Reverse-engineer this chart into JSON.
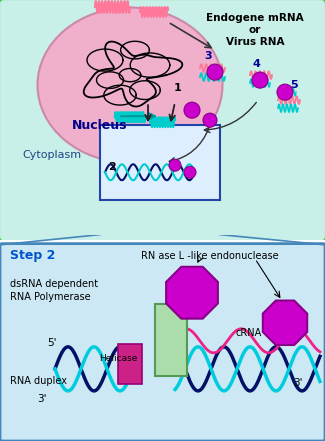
{
  "cell_bg": "#c8f0e8",
  "cell_border": "#44cc44",
  "nucleus_color": "#f0b0cc",
  "step2_bg": "#cce8f4",
  "step2_border": "#4488bb",
  "magenta": "#cc00cc",
  "cyan_color": "#00ccdd",
  "dark_navy": "#001166",
  "green_rect": "#aaddaa",
  "pink_rect": "#cc2288",
  "labels": {
    "nucleus": "Nucleus",
    "cytoplasm": "Cytoplasm",
    "endogene": "Endogene mRNA\nor\nVirus RNA",
    "step2": "Step 2",
    "dsrna_dep": "dsRNA dependent\nRNA Polymerase",
    "rnase": "RN ase L -like endonuclease",
    "crna": "cRNA",
    "helicase": "Helicase",
    "rna_duplex": "RNA duplex"
  }
}
